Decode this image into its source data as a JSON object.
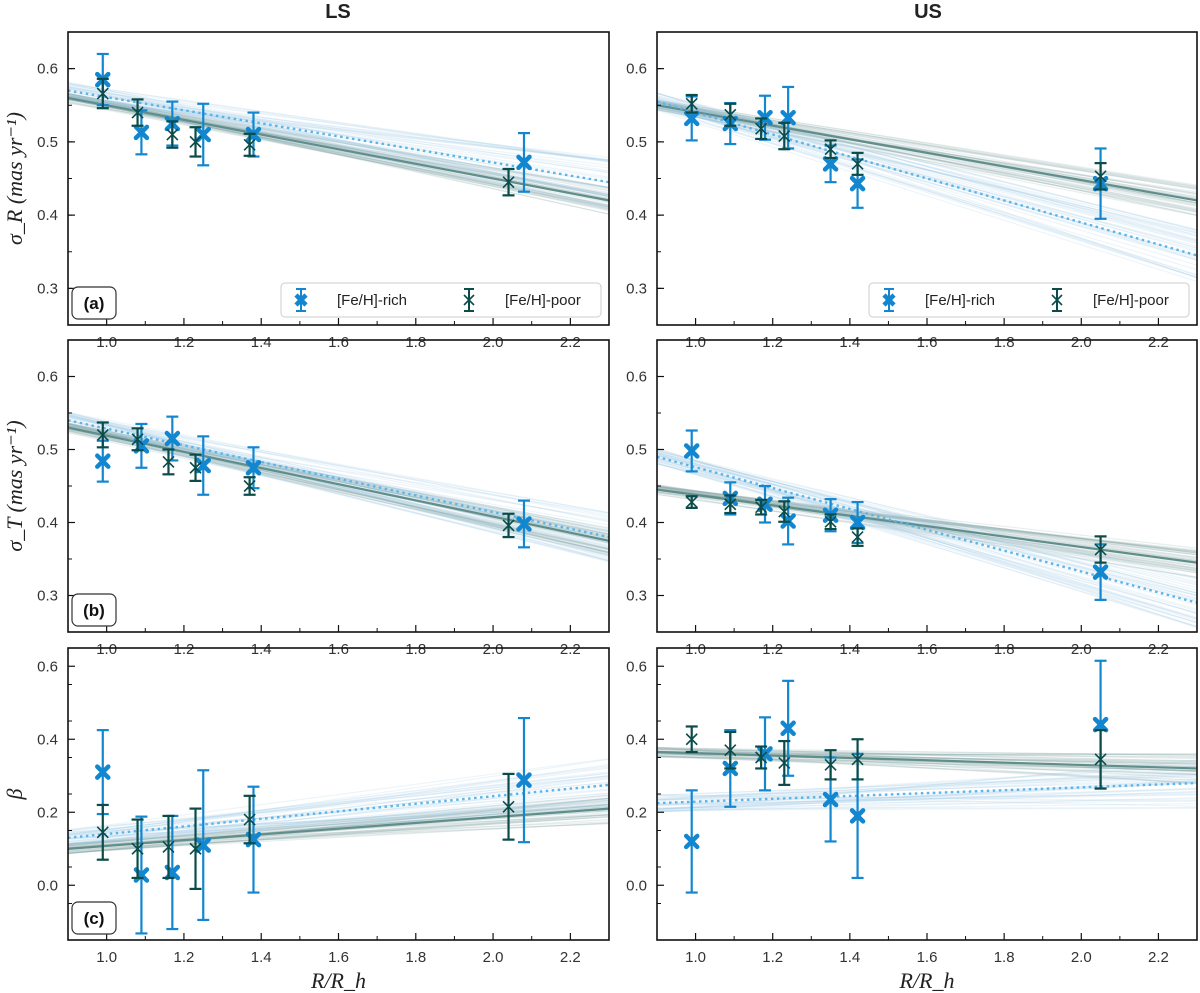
{
  "figure": {
    "columns": [
      "LS",
      "US"
    ],
    "panel_labels": [
      "(a)",
      "(b)",
      "(c)"
    ],
    "legend": [
      "[Fe/H]-rich",
      "[Fe/H]-poor"
    ],
    "xlabel": "R/R_h",
    "ylabels": [
      "σ_R (mas yr⁻¹)",
      "σ_T (mas yr⁻¹)",
      "β"
    ]
  },
  "colors": {
    "rich": "#1287d0",
    "poor": "#0b4c4a",
    "rich_band": "#9cc7e6",
    "poor_band": "#7fa3a1",
    "rich_fit": "#5bb4ea",
    "poor_fit": "#5f8e8b"
  },
  "chart_data": [
    {
      "type": "scatter",
      "panel": "a",
      "column": "LS",
      "xlim": [
        0.9,
        2.3
      ],
      "ylim": [
        0.25,
        0.65
      ],
      "xticks": [
        "1.0",
        "1.2",
        "1.4",
        "1.6",
        "1.8",
        "2.0",
        "2.2"
      ],
      "yticks": [
        "0.3",
        "0.4",
        "0.5",
        "0.6"
      ],
      "series": [
        {
          "name": "[Fe/H]-rich",
          "x": [
            0.99,
            1.09,
            1.17,
            1.25,
            1.38,
            2.08
          ],
          "y": [
            0.585,
            0.513,
            0.525,
            0.51,
            0.51,
            0.472
          ],
          "err": [
            0.035,
            0.03,
            0.03,
            0.042,
            0.03,
            0.04
          ],
          "fit": [
            0.57,
            0.445
          ]
        },
        {
          "name": "[Fe/H]-poor",
          "x": [
            0.99,
            1.08,
            1.17,
            1.23,
            1.37,
            2.04
          ],
          "y": [
            0.566,
            0.54,
            0.51,
            0.5,
            0.496,
            0.445
          ],
          "err": [
            0.02,
            0.018,
            0.018,
            0.02,
            0.015,
            0.018
          ],
          "fit": [
            0.56,
            0.42
          ]
        }
      ]
    },
    {
      "type": "scatter",
      "panel": "a",
      "column": "US",
      "xlim": [
        0.9,
        2.3
      ],
      "ylim": [
        0.25,
        0.65
      ],
      "xticks": [
        "1.0",
        "1.2",
        "1.4",
        "1.6",
        "1.8",
        "2.0",
        "2.2"
      ],
      "yticks": [
        "0.3",
        "0.4",
        "0.5",
        "0.6"
      ],
      "series": [
        {
          "name": "[Fe/H]-rich",
          "x": [
            0.99,
            1.09,
            1.18,
            1.24,
            1.35,
            1.42,
            2.05
          ],
          "y": [
            0.532,
            0.525,
            0.533,
            0.533,
            0.47,
            0.443,
            0.443
          ],
          "err": [
            0.03,
            0.028,
            0.03,
            0.042,
            0.025,
            0.033,
            0.048
          ],
          "fit": [
            0.555,
            0.345
          ]
        },
        {
          "name": "[Fe/H]-poor",
          "x": [
            0.99,
            1.09,
            1.17,
            1.23,
            1.35,
            1.42,
            2.05
          ],
          "y": [
            0.552,
            0.537,
            0.518,
            0.508,
            0.49,
            0.47,
            0.453
          ],
          "err": [
            0.012,
            0.015,
            0.014,
            0.018,
            0.012,
            0.015,
            0.018
          ],
          "fit": [
            0.55,
            0.42
          ]
        }
      ]
    },
    {
      "type": "scatter",
      "panel": "b",
      "column": "LS",
      "xlim": [
        0.9,
        2.3
      ],
      "ylim": [
        0.25,
        0.65
      ],
      "xticks": [
        "1.0",
        "1.2",
        "1.4",
        "1.6",
        "1.8",
        "2.0",
        "2.2"
      ],
      "yticks": [
        "0.3",
        "0.4",
        "0.5",
        "0.6"
      ],
      "series": [
        {
          "name": "[Fe/H]-rich",
          "x": [
            0.99,
            1.09,
            1.17,
            1.25,
            1.38,
            2.08
          ],
          "y": [
            0.484,
            0.505,
            0.515,
            0.478,
            0.475,
            0.398
          ],
          "err": [
            0.028,
            0.03,
            0.03,
            0.04,
            0.028,
            0.032
          ],
          "fit": [
            0.54,
            0.38
          ]
        },
        {
          "name": "[Fe/H]-poor",
          "x": [
            0.99,
            1.08,
            1.16,
            1.23,
            1.37,
            2.04
          ],
          "y": [
            0.52,
            0.514,
            0.483,
            0.475,
            0.45,
            0.396
          ],
          "err": [
            0.017,
            0.015,
            0.017,
            0.018,
            0.012,
            0.016
          ],
          "fit": [
            0.53,
            0.375
          ]
        }
      ]
    },
    {
      "type": "scatter",
      "panel": "b",
      "column": "US",
      "xlim": [
        0.9,
        2.3
      ],
      "ylim": [
        0.25,
        0.65
      ],
      "xticks": [
        "1.0",
        "1.2",
        "1.4",
        "1.6",
        "1.8",
        "2.0",
        "2.2"
      ],
      "yticks": [
        "0.3",
        "0.4",
        "0.5",
        "0.6"
      ],
      "series": [
        {
          "name": "[Fe/H]-rich",
          "x": [
            0.99,
            1.09,
            1.18,
            1.24,
            1.35,
            1.42,
            2.05
          ],
          "y": [
            0.498,
            0.433,
            0.425,
            0.402,
            0.41,
            0.4,
            0.332
          ],
          "err": [
            0.028,
            0.022,
            0.025,
            0.032,
            0.022,
            0.028,
            0.038
          ],
          "fit": [
            0.49,
            0.29
          ]
        },
        {
          "name": "[Fe/H]-poor",
          "x": [
            0.99,
            1.09,
            1.17,
            1.23,
            1.35,
            1.42,
            2.05
          ],
          "y": [
            0.428,
            0.425,
            0.421,
            0.415,
            0.401,
            0.38,
            0.363
          ],
          "err": [
            0.008,
            0.012,
            0.01,
            0.014,
            0.01,
            0.012,
            0.018
          ],
          "fit": [
            0.445,
            0.345
          ]
        }
      ]
    },
    {
      "type": "scatter",
      "panel": "c",
      "column": "LS",
      "xlim": [
        0.9,
        2.3
      ],
      "ylim": [
        -0.15,
        0.65
      ],
      "xticks": [
        "1.0",
        "1.2",
        "1.4",
        "1.6",
        "1.8",
        "2.0",
        "2.2"
      ],
      "yticks": [
        "0.0",
        "0.2",
        "0.4",
        "0.6"
      ],
      "series": [
        {
          "name": "[Fe/H]-rich",
          "x": [
            0.99,
            1.09,
            1.17,
            1.25,
            1.38,
            2.08
          ],
          "y": [
            0.31,
            0.028,
            0.035,
            0.11,
            0.125,
            0.288
          ],
          "err": [
            0.115,
            0.16,
            0.155,
            0.205,
            0.145,
            0.17
          ],
          "fit": [
            0.13,
            0.275
          ]
        },
        {
          "name": "[Fe/H]-poor",
          "x": [
            0.99,
            1.08,
            1.16,
            1.23,
            1.37,
            2.04
          ],
          "y": [
            0.145,
            0.1,
            0.105,
            0.1,
            0.18,
            0.215
          ],
          "err": [
            0.075,
            0.08,
            0.085,
            0.11,
            0.065,
            0.09
          ],
          "fit": [
            0.1,
            0.21
          ]
        }
      ]
    },
    {
      "type": "scatter",
      "panel": "c",
      "column": "US",
      "xlim": [
        0.9,
        2.3
      ],
      "ylim": [
        -0.15,
        0.65
      ],
      "xticks": [
        "1.0",
        "1.2",
        "1.4",
        "1.6",
        "1.8",
        "2.0",
        "2.2"
      ],
      "yticks": [
        "0.0",
        "0.2",
        "0.4",
        "0.6"
      ],
      "series": [
        {
          "name": "[Fe/H]-rich",
          "x": [
            0.99,
            1.09,
            1.18,
            1.24,
            1.35,
            1.42,
            2.05
          ],
          "y": [
            0.12,
            0.32,
            0.36,
            0.43,
            0.235,
            0.19,
            0.44
          ],
          "err": [
            0.14,
            0.105,
            0.1,
            0.13,
            0.115,
            0.17,
            0.175
          ],
          "fit": [
            0.225,
            0.28
          ]
        },
        {
          "name": "[Fe/H]-poor",
          "x": [
            0.99,
            1.09,
            1.17,
            1.23,
            1.35,
            1.42,
            2.05
          ],
          "y": [
            0.4,
            0.37,
            0.35,
            0.335,
            0.33,
            0.345,
            0.345
          ],
          "err": [
            0.035,
            0.05,
            0.03,
            0.06,
            0.04,
            0.055,
            0.08
          ],
          "fit": [
            0.365,
            0.32
          ]
        }
      ]
    }
  ]
}
